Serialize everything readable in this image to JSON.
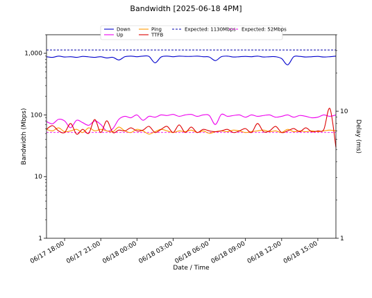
{
  "chart_data": {
    "type": "line",
    "title": "Bandwidth [2025-06-18 4PM]",
    "xlabel": "Date / Time",
    "ylabel_left": "Bandwidth (Mbps)",
    "ylabel_right": "Delay (ms)",
    "left_axis": {
      "scale": "log",
      "ylim": [
        1,
        2000
      ],
      "ticks": [
        1,
        10,
        100,
        1000
      ],
      "tick_labels": [
        "1",
        "10",
        "100",
        "1,000"
      ]
    },
    "right_axis": {
      "scale": "log",
      "ylim": [
        1,
        40
      ],
      "ticks": [
        1,
        10
      ],
      "tick_labels": [
        "1",
        "10"
      ]
    },
    "x_axis": {
      "xlim": [
        "06/17 16:30",
        "06/18 16:30"
      ],
      "ticks": [
        "06/17 18:00",
        "06/17 21:00",
        "06/18 00:00",
        "06/18 03:00",
        "06/18 06:00",
        "06/18 09:00",
        "06/18 12:00",
        "06/18 15:00"
      ]
    },
    "series": [
      {
        "name": "Down",
        "color": "#0000cc",
        "axis": "left",
        "x_start": "06/17 16:30",
        "x_step_minutes": 30,
        "values": [
          880,
          860,
          900,
          870,
          880,
          860,
          890,
          875,
          860,
          880,
          840,
          860,
          780,
          880,
          900,
          880,
          900,
          890,
          700,
          870,
          900,
          880,
          900,
          890,
          890,
          900,
          880,
          870,
          760,
          880,
          900,
          870,
          880,
          890,
          880,
          900,
          870,
          880,
          880,
          820,
          650,
          880,
          890,
          870,
          880,
          890,
          870,
          880,
          900
        ]
      },
      {
        "name": "Up",
        "color": "#ee00ee",
        "axis": "left",
        "x_start": "06/17 16:30",
        "x_step_minutes": 30,
        "values": [
          78,
          72,
          85,
          80,
          62,
          82,
          75,
          68,
          80,
          70,
          55,
          60,
          85,
          95,
          90,
          100,
          82,
          95,
          92,
          100,
          98,
          102,
          95,
          100,
          102,
          95,
          100,
          98,
          70,
          102,
          95,
          98,
          100,
          92,
          100,
          95,
          98,
          100,
          92,
          95,
          100,
          92,
          98,
          95,
          90,
          92,
          100,
          95,
          100
        ]
      },
      {
        "name": "Ping",
        "color": "#ff9900",
        "axis": "right",
        "x_start": "06/17 16:30",
        "x_step_minutes": 30,
        "values": [
          7.2,
          7.0,
          7.4,
          6.9,
          7.0,
          7.2,
          6.8,
          7.4,
          7.0,
          7.2,
          7.0,
          6.9,
          7.5,
          7.0,
          6.8,
          7.2,
          7.0,
          6.6,
          6.9,
          7.2,
          7.0,
          6.8,
          7.0,
          6.9,
          7.1,
          6.8,
          7.0,
          6.7,
          6.9,
          7.0,
          6.9,
          7.1,
          7.0,
          6.8,
          6.9,
          7.0,
          7.1,
          6.9,
          7.0,
          6.8,
          7.2,
          6.9,
          7.0,
          6.9,
          7.0,
          6.9,
          7.0,
          7.1,
          7.0
        ]
      },
      {
        "name": "TTFB",
        "color": "#dd0000",
        "axis": "right",
        "x_start": "06/17 16:30",
        "x_step_minutes": 30,
        "values": [
          7.2,
          7.7,
          7.0,
          6.8,
          8.0,
          6.6,
          7.2,
          6.7,
          8.6,
          6.8,
          8.4,
          6.8,
          7.1,
          7.0,
          7.4,
          7.0,
          7.1,
          7.6,
          6.8,
          7.2,
          7.6,
          6.8,
          7.8,
          6.8,
          7.5,
          6.8,
          7.2,
          7.0,
          6.9,
          7.0,
          7.2,
          6.8,
          7.0,
          7.3,
          6.8,
          8.0,
          6.9,
          7.0,
          7.6,
          6.8,
          7.0,
          7.3,
          6.9,
          7.4,
          6.9,
          7.0,
          7.2,
          10.5,
          5.2
        ]
      }
    ],
    "reference_lines": [
      {
        "name": "Expected: 1130Mbps",
        "color": "#0000aa",
        "axis": "left",
        "value": 1130,
        "style": "dashed"
      },
      {
        "name": "Expected: 52Mbps",
        "color": "#ee00ee",
        "axis": "left",
        "value": 52,
        "style": "dashed"
      }
    ],
    "legend": {
      "placement": "top-center",
      "columns": 4
    },
    "grid": false
  }
}
